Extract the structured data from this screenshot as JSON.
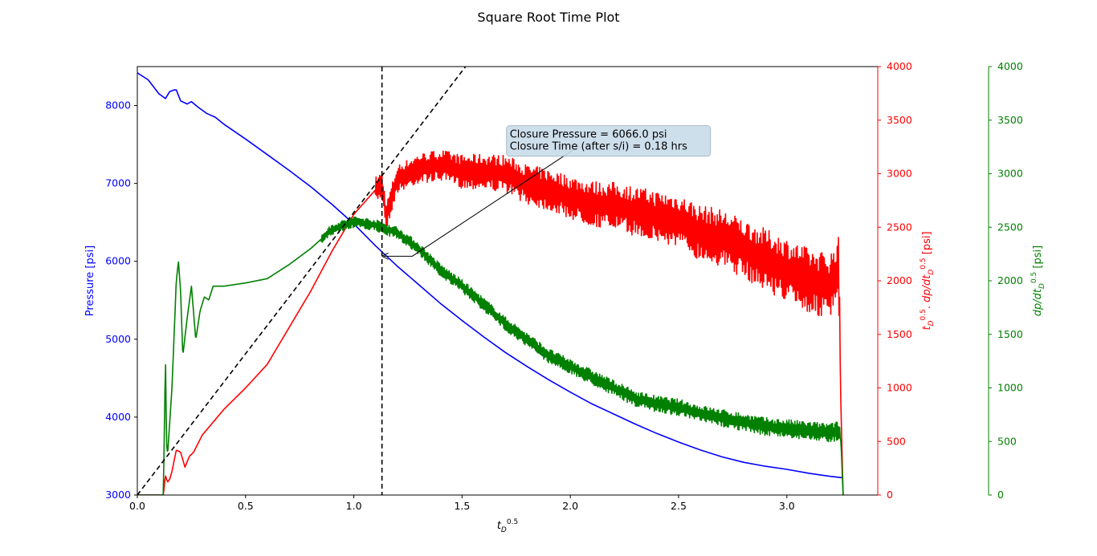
{
  "figure": {
    "title": "Square Root Time Plot"
  },
  "chart_data": {
    "type": "line",
    "title": "Square Root Time Plot",
    "grid": false,
    "x_axis": {
      "label": "t_D^0.5",
      "lim": [
        0,
        3.42
      ],
      "ticks": [
        0,
        0.5,
        1.0,
        1.5,
        2.0,
        2.5,
        3.0
      ],
      "tick_labels": [
        "0.0",
        "0.5",
        "1.0",
        "1.5",
        "2.0",
        "2.5",
        "3.0"
      ]
    },
    "y_axes": [
      {
        "id": "pressure",
        "position": "left",
        "label": "Pressure [psi]",
        "color": "#0000ff",
        "lim": [
          3000,
          8500
        ],
        "ticks": [
          3000,
          4000,
          5000,
          6000,
          7000,
          8000
        ],
        "tick_labels": [
          "3000",
          "4000",
          "5000",
          "6000",
          "7000",
          "8000"
        ]
      },
      {
        "id": "superposition",
        "position": "right",
        "label": "t_D^0.5 . dp/dt_D^0.5 [psi]",
        "color": "#ff0000",
        "lim": [
          0,
          4000
        ],
        "ticks": [
          0,
          500,
          1000,
          1500,
          2000,
          2500,
          3000,
          3500,
          4000
        ],
        "tick_labels": [
          "0",
          "500",
          "1000",
          "1500",
          "2000",
          "2500",
          "3000",
          "3500",
          "4000"
        ]
      },
      {
        "id": "derivative",
        "position": "right-outer",
        "label": "dp/dt_D^0.5 [psi]",
        "color": "#008000",
        "lim": [
          0,
          4000
        ],
        "ticks": [
          0,
          500,
          1000,
          1500,
          2000,
          2500,
          3000,
          3500,
          4000
        ],
        "tick_labels": [
          "0",
          "500",
          "1000",
          "1500",
          "2000",
          "2500",
          "3000",
          "3500",
          "4000"
        ]
      }
    ],
    "series": [
      {
        "axis": "pressure",
        "color": "#0000ff",
        "style": "solid",
        "x": [
          0.0,
          0.05,
          0.1,
          0.12,
          0.13,
          0.15,
          0.17,
          0.18,
          0.2,
          0.23,
          0.25,
          0.28,
          0.32,
          0.36,
          0.4,
          0.5,
          0.6,
          0.7,
          0.8,
          0.9,
          1.0,
          1.1,
          1.2,
          1.3,
          1.4,
          1.5,
          1.6,
          1.7,
          1.8,
          1.9,
          2.0,
          2.1,
          2.2,
          2.3,
          2.4,
          2.5,
          2.6,
          2.7,
          2.8,
          2.9,
          3.0,
          3.1,
          3.2,
          3.26
        ],
        "y": [
          8420,
          8330,
          8150,
          8110,
          8090,
          8180,
          8200,
          8200,
          8060,
          8020,
          8050,
          7980,
          7900,
          7850,
          7760,
          7570,
          7370,
          7170,
          6960,
          6730,
          6480,
          6200,
          5940,
          5700,
          5460,
          5240,
          5030,
          4830,
          4650,
          4480,
          4320,
          4170,
          4040,
          3910,
          3790,
          3680,
          3580,
          3490,
          3420,
          3370,
          3330,
          3280,
          3240,
          3220
        ]
      },
      {
        "axis": "superposition",
        "color": "#ff0000",
        "style": "solid-noisy",
        "x": [
          0.0,
          0.12,
          0.13,
          0.14,
          0.15,
          0.16,
          0.18,
          0.2,
          0.22,
          0.24,
          0.26,
          0.3,
          0.35,
          0.4,
          0.5,
          0.6,
          0.7,
          0.8,
          0.9,
          1.0,
          1.1,
          1.13,
          1.15,
          1.2,
          1.3,
          1.4,
          1.5,
          1.6,
          1.7,
          1.8,
          1.9,
          2.0,
          2.1,
          2.2,
          2.3,
          2.4,
          2.5,
          2.6,
          2.7,
          2.8,
          2.9,
          3.0,
          3.1,
          3.2,
          3.24,
          3.25,
          3.26
        ],
        "y": [
          0,
          0,
          180,
          120,
          150,
          220,
          420,
          400,
          260,
          360,
          400,
          560,
          680,
          800,
          1000,
          1220,
          1560,
          1900,
          2280,
          2620,
          2850,
          2900,
          2600,
          2950,
          3050,
          3080,
          3020,
          3020,
          3000,
          2900,
          2850,
          2780,
          2720,
          2700,
          2650,
          2600,
          2560,
          2450,
          2400,
          2300,
          2200,
          2100,
          2000,
          1950,
          2100,
          800,
          0
        ],
        "noise_from_x": 1.1,
        "noise_amplitude_psi": [
          120,
          320
        ]
      },
      {
        "axis": "derivative",
        "color": "#008000",
        "style": "solid-noisy",
        "x": [
          0.0,
          0.12,
          0.13,
          0.135,
          0.14,
          0.16,
          0.18,
          0.19,
          0.2,
          0.21,
          0.23,
          0.25,
          0.27,
          0.29,
          0.31,
          0.33,
          0.35,
          0.4,
          0.5,
          0.6,
          0.7,
          0.8,
          0.9,
          1.0,
          1.1,
          1.15,
          1.2,
          1.3,
          1.4,
          1.5,
          1.6,
          1.7,
          1.8,
          1.9,
          2.0,
          2.1,
          2.2,
          2.3,
          2.4,
          2.5,
          2.6,
          2.7,
          2.8,
          2.9,
          3.0,
          3.1,
          3.2,
          3.24,
          3.25,
          3.26
        ],
        "y": [
          0,
          0,
          1280,
          480,
          380,
          1000,
          2000,
          2180,
          1900,
          1300,
          1650,
          1950,
          1450,
          1720,
          1850,
          1820,
          1950,
          1950,
          1980,
          2020,
          2150,
          2300,
          2480,
          2550,
          2520,
          2480,
          2450,
          2300,
          2100,
          1950,
          1780,
          1600,
          1450,
          1300,
          1200,
          1100,
          1000,
          900,
          850,
          820,
          760,
          720,
          680,
          640,
          620,
          600,
          580,
          600,
          500,
          0
        ],
        "noise_from_x": 0.85,
        "noise_amplitude_psi": [
          50,
          90
        ]
      },
      {
        "axis": "pressure",
        "name": "closure-line",
        "color": "#000000",
        "style": "dashed",
        "x": [
          0.0,
          1.53
        ],
        "y": [
          3000,
          8550
        ]
      }
    ],
    "vertical_lines": [
      {
        "x": 1.13,
        "color": "#000000",
        "style": "dashed"
      }
    ],
    "annotations": [
      {
        "lines": [
          "Closure Pressure = 6066.0 psi",
          "Closure Time (after s/i) = 0.18  hrs"
        ],
        "point": {
          "x": 1.13,
          "y": 6066,
          "axis": "pressure"
        },
        "text_at": {
          "x": 1.72,
          "y": 7690,
          "axis": "pressure"
        },
        "arrow_elbow": {
          "x": 1.27,
          "y": 6066
        },
        "arrow_to_box": {
          "x": 2.04,
          "y": 7480
        },
        "box_fill": "#c9dcea",
        "box_edge": "#9fb3c4"
      }
    ]
  }
}
